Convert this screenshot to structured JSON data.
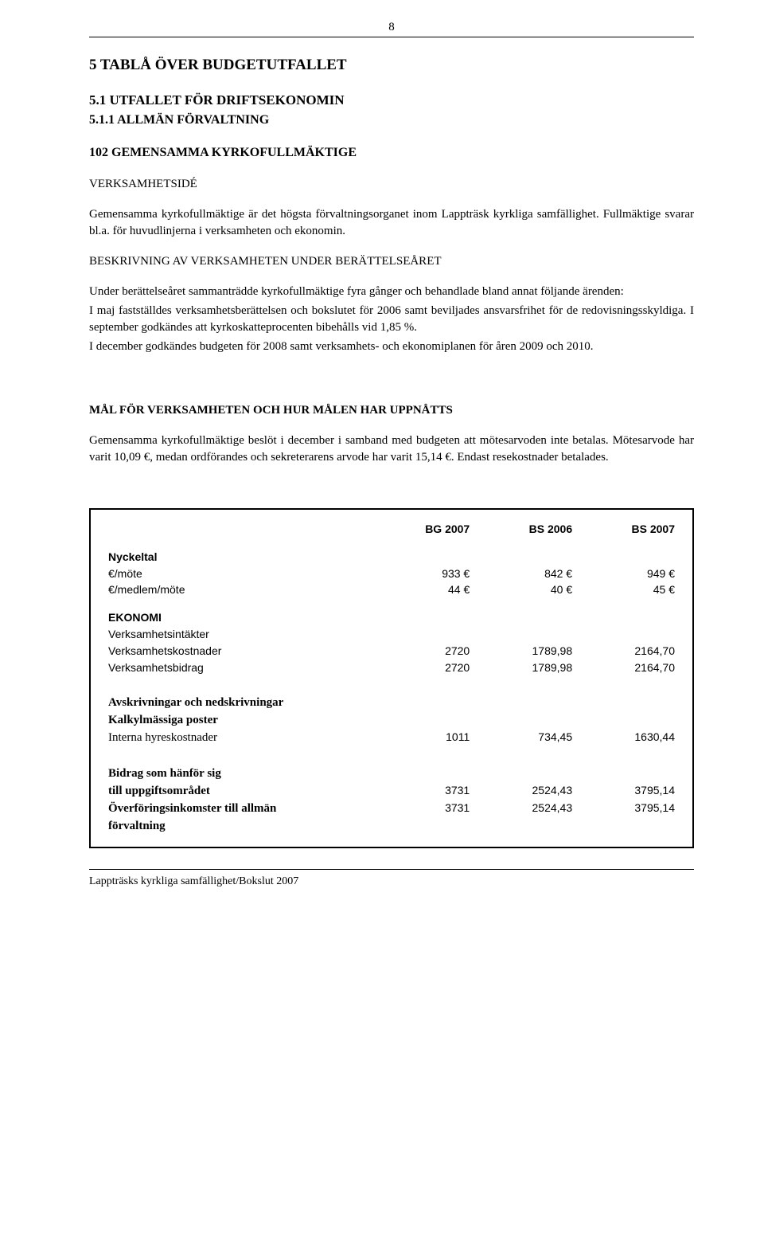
{
  "page_number": "8",
  "h1": "5 TABLÅ ÖVER BUDGETUTFALLET",
  "h2": "5.1 UTFALLET FÖR DRIFTSEKONOMIN",
  "h3": "5.1.1 ALLMÄN FÖRVALTNING",
  "h4": "102 GEMENSAMMA KYRKOFULLMÄKTIGE",
  "sub1": "VERKSAMHETSIDÉ",
  "p1": "Gemensamma kyrkofullmäktige är det högsta förvaltningsorganet inom Lappträsk kyrkliga samfällighet. Fullmäktige svarar bl.a. för huvudlinjerna i verksamheten och ekonomin.",
  "sub2": "BESKRIVNING AV VERKSAMHETEN UNDER BERÄTTELSEÅRET",
  "p2a": "Under berättelseåret sammanträdde  kyrkofullmäktige fyra gånger och behandlade bland annat följande ärenden:",
  "p2b": "I maj fastställdes verksamhetsberättelsen och bokslutet för 2006 samt beviljades ansvarsfrihet för de redovisningsskyldiga.  I september godkändes att kyrkoskatteprocenten  bibehålls vid 1,85 %.",
  "p2c": "I december godkändes budgeten för 2008 samt verksamhets- och ekonomiplanen för åren 2009 och 2010.",
  "h_mal": "MÅL FÖR VERKSAMHETEN OCH HUR MÅLEN HAR UPPNÅTTS",
  "p3": "Gemensamma kyrkofullmäktige beslöt i december i  samband med budgeten att mötesarvoden inte betalas. Mötesarvode har varit 10,09 €, medan ordförandes och sekreterarens arvode har varit 15,14 €. Endast resekostnader betalades.",
  "table": {
    "headers": {
      "c1": "BG 2007",
      "c2": "BS 2006",
      "c3": "BS 2007"
    },
    "nyckeltal_label": "Nyckeltal",
    "rows_nyckeltal": [
      {
        "label": " €/möte",
        "c1": "933 €",
        "c2": "842 €",
        "c3": "949 €"
      },
      {
        "label": " €/medlem/möte",
        "c1": "44 €",
        "c2": "40 €",
        "c3": "45 €"
      }
    ],
    "ekonomi_label": "EKONOMI",
    "rows_ekonomi": [
      {
        "label": "Verksamhetsintäkter",
        "c1": "",
        "c2": "",
        "c3": ""
      },
      {
        "label": "Verksamhetskostnader",
        "c1": "2720",
        "c2": "1789,98",
        "c3": "2164,70"
      },
      {
        "label": "Verksamhetsbidrag",
        "c1": "2720",
        "c2": "1789,98",
        "c3": "2164,70"
      }
    ],
    "avskriv_label": "Avskrivningar och nedskrivningar",
    "kalkyl_label": "Kalkylmässiga poster",
    "row_interna": {
      "label": "Interna hyreskostnader",
      "c1": "1011",
      "c2": "734,45",
      "c3": "1630,44"
    },
    "bidrag_label": "Bidrag som hänför sig",
    "row_till": {
      "label": "till uppgiftsområdet",
      "c1": "3731",
      "c2": "2524,43",
      "c3": "3795,14"
    },
    "row_over_a": "Överföringsinkomster till allmän",
    "row_over_b": "förvaltning",
    "row_over": {
      "c1": "3731",
      "c2": "2524,43",
      "c3": "3795,14"
    }
  },
  "footer": "Lappträsks kyrkliga samfällighet/Bokslut 2007"
}
